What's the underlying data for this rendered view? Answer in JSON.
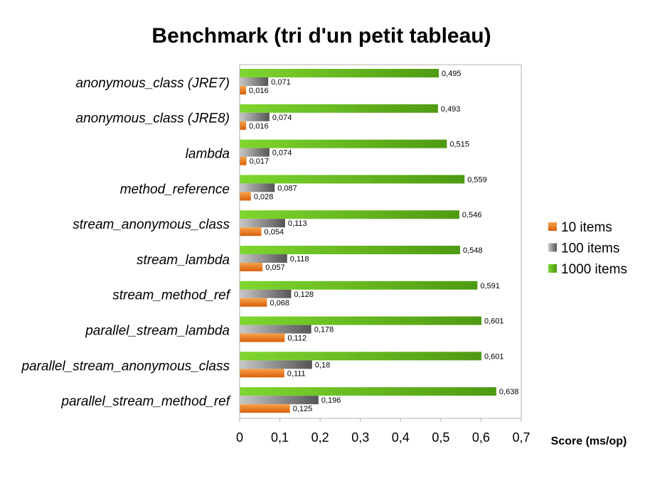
{
  "chart_data": {
    "type": "bar",
    "orientation": "horizontal",
    "title": "Benchmark (tri d'un petit tableau)",
    "xlabel": "Score (ms/op)",
    "ylabel": "",
    "xlim": [
      0,
      0.7
    ],
    "x_ticks": [
      "0",
      "0,1",
      "0,2",
      "0,3",
      "0,4",
      "0,5",
      "0,6",
      "0,7"
    ],
    "grid": false,
    "legend_position": "right",
    "categories": [
      "anonymous_class (JRE7)",
      "anonymous_class (JRE8)",
      "lambda",
      "method_reference",
      "stream_anonymous_class",
      "stream_lambda",
      "stream_method_ref",
      "parallel_stream_lambda",
      "parallel_stream_anonymous_class",
      "parallel_stream_method_ref"
    ],
    "series": [
      {
        "name": "10 items",
        "color": "#e8741a",
        "values": [
          0.016,
          0.016,
          0.017,
          0.028,
          0.054,
          0.057,
          0.068,
          0.112,
          0.111,
          0.125
        ],
        "labels": [
          "0,016",
          "0,016",
          "0,017",
          "0,028",
          "0,054",
          "0,057",
          "0,068",
          "0,112",
          "0,111",
          "0,125"
        ]
      },
      {
        "name": "100 items",
        "color": "#7a7a7a",
        "values": [
          0.071,
          0.074,
          0.074,
          0.087,
          0.113,
          0.118,
          0.128,
          0.178,
          0.18,
          0.196
        ],
        "labels": [
          "0,071",
          "0,074",
          "0,074",
          "0,087",
          "0,113",
          "0,118",
          "0,128",
          "0,178",
          "0,18",
          "0,196"
        ]
      },
      {
        "name": "1000 items",
        "color": "#5fb51c",
        "values": [
          0.495,
          0.493,
          0.515,
          0.559,
          0.546,
          0.548,
          0.591,
          0.601,
          0.601,
          0.638
        ],
        "labels": [
          "0,495",
          "0,493",
          "0,515",
          "0,559",
          "0,546",
          "0,548",
          "0,591",
          "0,601",
          "0,601",
          "0,638"
        ]
      }
    ]
  }
}
